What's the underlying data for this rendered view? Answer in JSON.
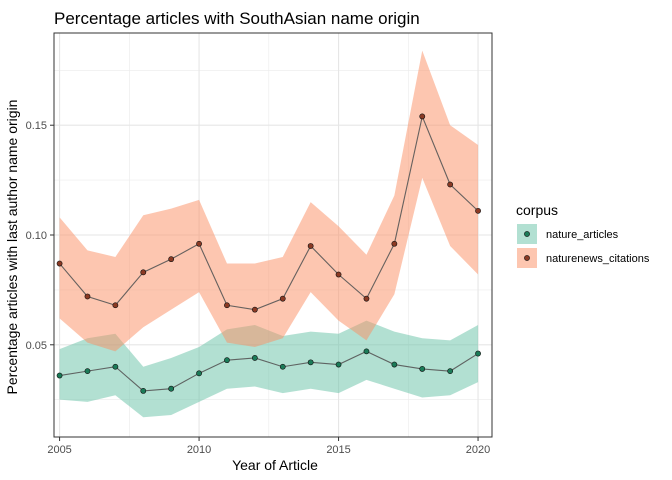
{
  "chart_data": {
    "type": "line",
    "title": "Percentage articles with SouthAsian name origin",
    "xlabel": "Year of Article",
    "ylabel": "Percentage articles with last author name origin",
    "xlim": [
      2004.8,
      2020.5
    ],
    "ylim": [
      0.008,
      0.192
    ],
    "xticks": [
      2005,
      2010,
      2015,
      2020
    ],
    "yticks": [
      0.05,
      0.1,
      0.15
    ],
    "ytick_labels": [
      "0.05",
      "0.10",
      "0.15"
    ],
    "grid": true,
    "legend": {
      "title": "corpus",
      "position": "right"
    },
    "x": [
      2005,
      2006,
      2007,
      2008,
      2009,
      2010,
      2011,
      2012,
      2013,
      2014,
      2015,
      2016,
      2017,
      2018,
      2019,
      2020
    ],
    "series": [
      {
        "name": "nature_articles",
        "color": "#1b7b58",
        "band_color": "#66c2a5",
        "values": [
          0.036,
          0.038,
          0.04,
          0.029,
          0.03,
          0.037,
          0.043,
          0.044,
          0.04,
          0.042,
          0.041,
          0.047,
          0.041,
          0.039,
          0.038,
          0.046
        ],
        "lower": [
          0.025,
          0.024,
          0.027,
          0.017,
          0.018,
          0.024,
          0.03,
          0.031,
          0.028,
          0.03,
          0.028,
          0.034,
          0.03,
          0.026,
          0.027,
          0.033
        ],
        "upper": [
          0.048,
          0.053,
          0.055,
          0.04,
          0.044,
          0.049,
          0.057,
          0.059,
          0.054,
          0.056,
          0.055,
          0.061,
          0.056,
          0.053,
          0.052,
          0.059
        ]
      },
      {
        "name": "naturenews_citations",
        "color": "#8b3a24",
        "band_color": "#fc8d62",
        "values": [
          0.087,
          0.072,
          0.068,
          0.083,
          0.089,
          0.096,
          0.068,
          0.066,
          0.071,
          0.095,
          0.082,
          0.071,
          0.096,
          0.154,
          0.123,
          0.111
        ],
        "lower": [
          0.062,
          0.051,
          0.047,
          0.058,
          0.066,
          0.074,
          0.051,
          0.049,
          0.053,
          0.074,
          0.061,
          0.052,
          0.073,
          0.126,
          0.095,
          0.082
        ],
        "upper": [
          0.108,
          0.093,
          0.09,
          0.109,
          0.112,
          0.116,
          0.087,
          0.087,
          0.09,
          0.115,
          0.104,
          0.091,
          0.118,
          0.184,
          0.15,
          0.141
        ]
      }
    ]
  }
}
